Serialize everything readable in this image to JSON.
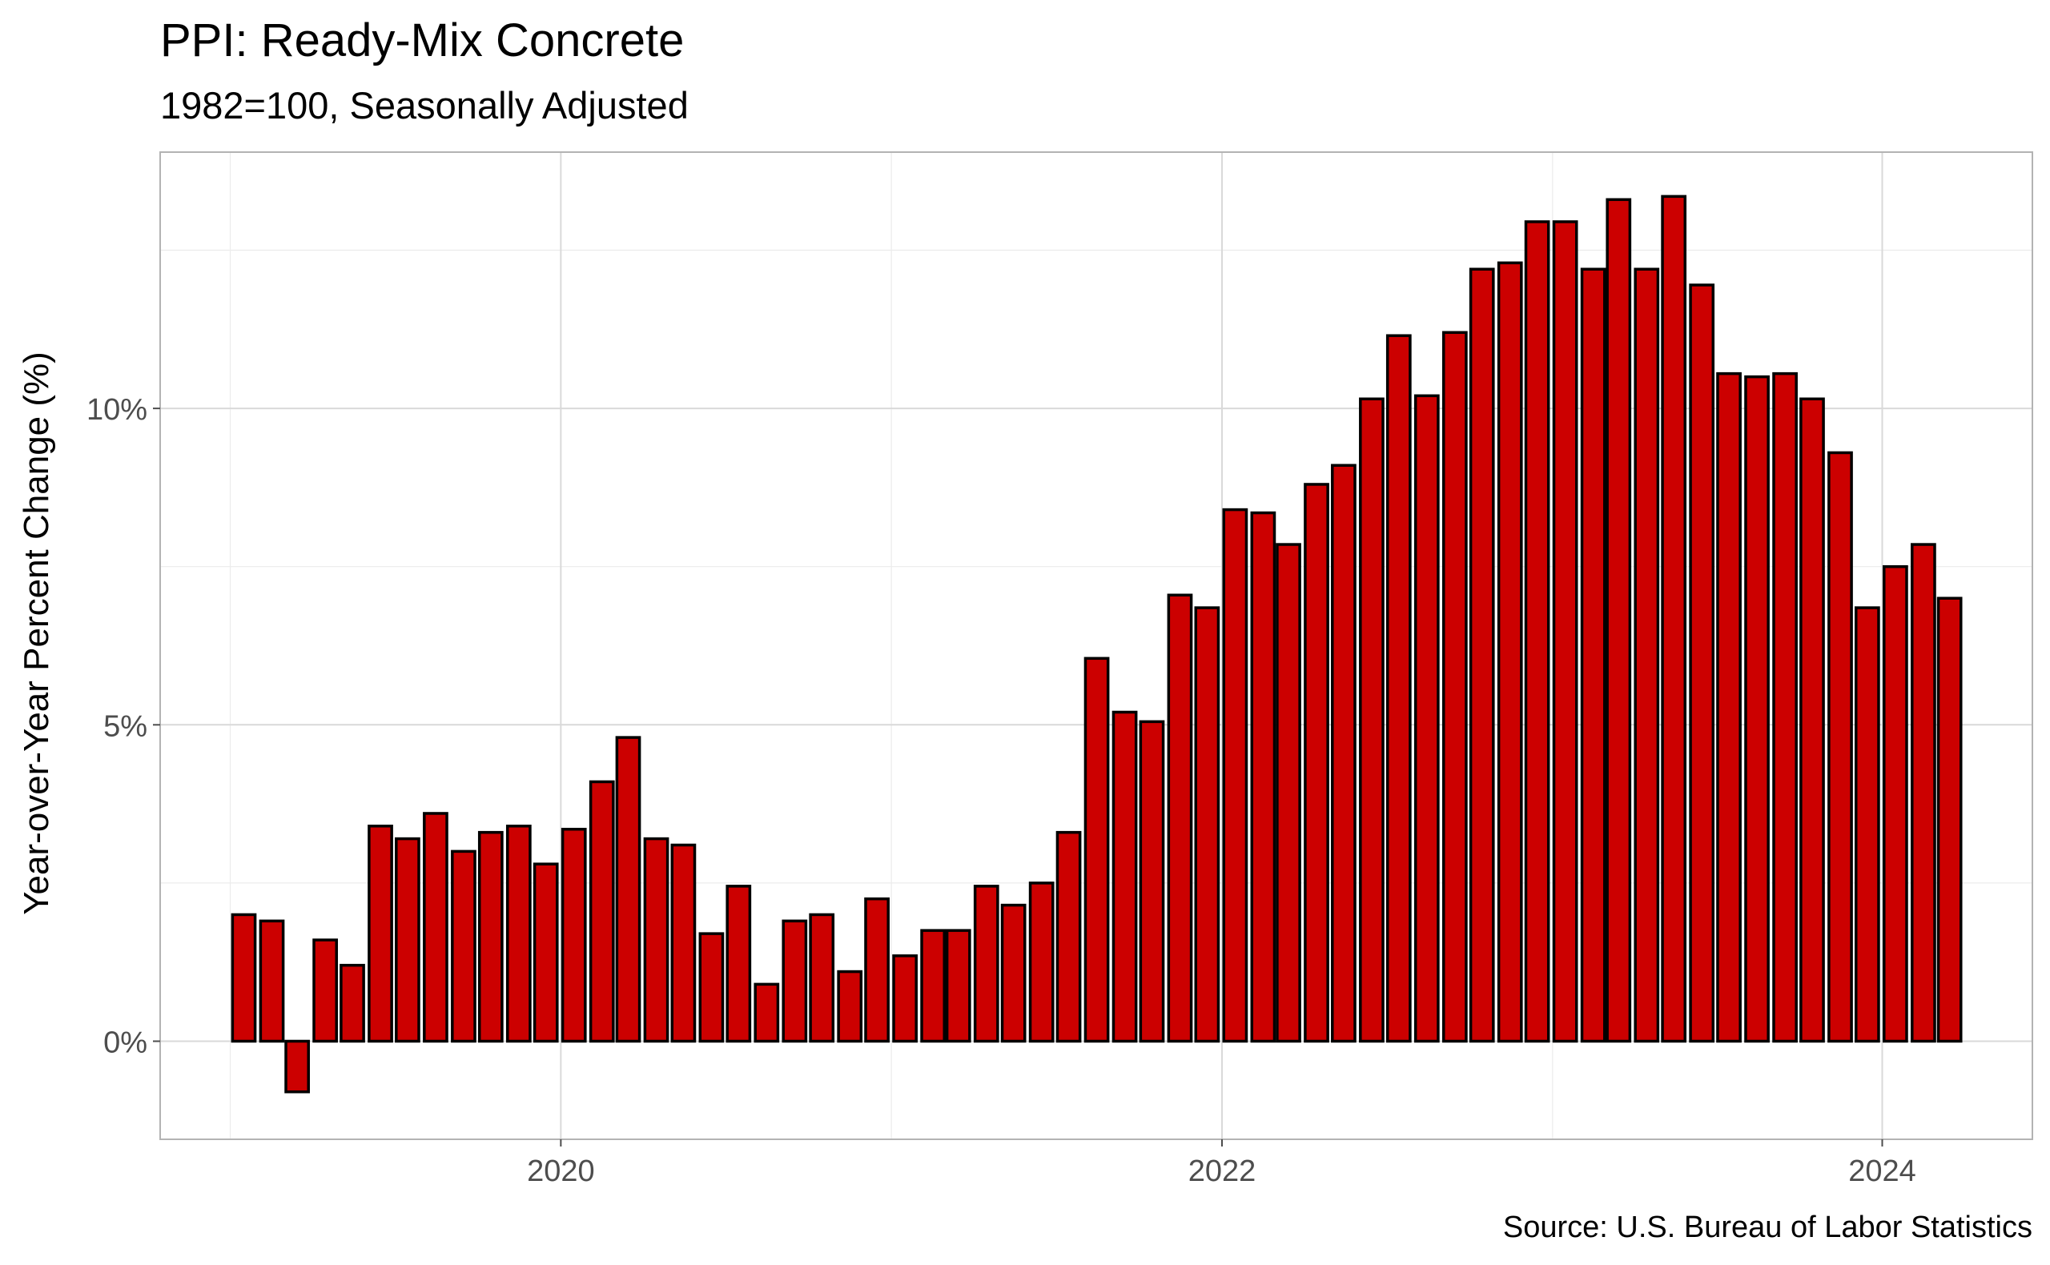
{
  "chart_data": {
    "type": "bar",
    "title": "PPI: Ready-Mix Concrete",
    "subtitle": "1982=100, Seasonally Adjusted",
    "xlabel": "",
    "ylabel": "Year-over-Year Percent Change (%)",
    "caption": "Source: U.S. Bureau of Labor Statistics",
    "x_ticks": [
      {
        "label": "2020",
        "date": "2020-01-01"
      },
      {
        "label": "2022",
        "date": "2022-01-01"
      },
      {
        "label": "2024",
        "date": "2024-01-01"
      }
    ],
    "y_ticks": [
      {
        "label": "0%",
        "value": 0
      },
      {
        "label": "5%",
        "value": 5
      },
      {
        "label": "10%",
        "value": 10
      }
    ],
    "xlim": [
      "2018-10-15",
      "2024-06-15"
    ],
    "ylim": [
      -1.55,
      14.05
    ],
    "grid": true,
    "legend": "none",
    "bar_fill": "#cc0000",
    "bar_outline": "#000000",
    "x": [
      "2019-01",
      "2019-02",
      "2019-03",
      "2019-04",
      "2019-05",
      "2019-06",
      "2019-07",
      "2019-08",
      "2019-09",
      "2019-10",
      "2019-11",
      "2019-12",
      "2020-01",
      "2020-02",
      "2020-03",
      "2020-04",
      "2020-05",
      "2020-06",
      "2020-07",
      "2020-08",
      "2020-09",
      "2020-10",
      "2020-11",
      "2020-12",
      "2021-01",
      "2021-02",
      "2021-03",
      "2021-04",
      "2021-05",
      "2021-06",
      "2021-07",
      "2021-08",
      "2021-09",
      "2021-10",
      "2021-11",
      "2021-12",
      "2022-01",
      "2022-02",
      "2022-03",
      "2022-04",
      "2022-05",
      "2022-06",
      "2022-07",
      "2022-08",
      "2022-09",
      "2022-10",
      "2022-11",
      "2022-12",
      "2023-01",
      "2023-02",
      "2023-03",
      "2023-04",
      "2023-05",
      "2023-06",
      "2023-07",
      "2023-08",
      "2023-09",
      "2023-10",
      "2023-11",
      "2023-12",
      "2024-01",
      "2024-02",
      "2024-03"
    ],
    "values": [
      2.0,
      1.9,
      -0.8,
      1.6,
      1.2,
      3.4,
      3.2,
      3.6,
      3.0,
      3.3,
      3.4,
      2.8,
      3.35,
      4.1,
      4.8,
      3.2,
      3.1,
      1.7,
      2.45,
      0.9,
      1.9,
      2.0,
      1.1,
      2.25,
      1.35,
      1.75,
      1.75,
      2.45,
      2.15,
      2.5,
      3.3,
      6.05,
      5.2,
      5.05,
      7.05,
      6.85,
      8.4,
      8.35,
      7.85,
      8.8,
      9.1,
      10.15,
      11.15,
      10.2,
      11.2,
      12.2,
      12.3,
      12.95,
      12.95,
      12.2,
      13.3,
      12.2,
      13.35,
      11.95,
      10.55,
      10.5,
      10.55,
      10.15,
      9.3,
      6.85,
      7.5,
      7.85,
      7.0
    ]
  }
}
